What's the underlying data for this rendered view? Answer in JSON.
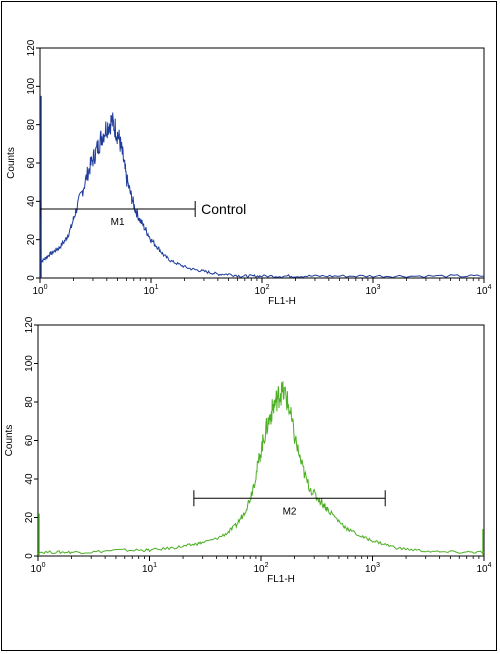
{
  "chart_data": [
    {
      "type": "line",
      "title": "",
      "xlabel": "FL1-H",
      "ylabel": "Counts",
      "x_scale": "log",
      "xlim": [
        1,
        10000
      ],
      "ylim": [
        0,
        120
      ],
      "y_ticks": [
        "0",
        "20",
        "40",
        "60",
        "80",
        "100",
        "120"
      ],
      "x_ticks": [
        {
          "base": "10",
          "exp": "0"
        },
        {
          "base": "10",
          "exp": "1"
        },
        {
          "base": "10",
          "exp": "2"
        },
        {
          "base": "10",
          "exp": "3"
        },
        {
          "base": "10",
          "exp": "4"
        }
      ],
      "color": "#1f3c9c",
      "series": [
        {
          "x": [
            1.0,
            1.1,
            1.2,
            1.35,
            1.5,
            1.7,
            1.9,
            2.1,
            2.4,
            2.7,
            3.0,
            3.3,
            3.6,
            4.0,
            4.4,
            4.8,
            5.2,
            5.6,
            6.0,
            6.6,
            7.2,
            8.0,
            9.0,
            10,
            11.5,
            13,
            15,
            18,
            22,
            27,
            33,
            40,
            50,
            65,
            80,
            100,
            150,
            200,
            300,
            500,
            1000,
            2000,
            5000,
            10000
          ],
          "y": [
            8,
            10,
            12,
            14,
            16,
            20,
            26,
            35,
            45,
            55,
            62,
            68,
            74,
            79,
            82,
            78,
            72,
            63,
            52,
            43,
            36,
            30,
            25,
            20,
            16,
            12,
            9,
            7,
            5,
            4,
            3,
            2,
            2,
            1,
            1,
            1,
            1,
            1,
            1,
            1,
            1,
            1,
            1,
            1
          ]
        }
      ],
      "marker": {
        "label": "M1",
        "x_start": 1.0,
        "x_end": 25,
        "y": 36
      },
      "annotation": "Control"
    },
    {
      "type": "line",
      "title": "",
      "xlabel": "FL1-H",
      "ylabel": "Counts",
      "x_scale": "log",
      "xlim": [
        1,
        10000
      ],
      "ylim": [
        0,
        120
      ],
      "y_ticks": [
        "0",
        "20",
        "40",
        "60",
        "80",
        "100",
        "120"
      ],
      "x_ticks": [
        {
          "base": "10",
          "exp": "0"
        },
        {
          "base": "10",
          "exp": "1"
        },
        {
          "base": "10",
          "exp": "2"
        },
        {
          "base": "10",
          "exp": "3"
        },
        {
          "base": "10",
          "exp": "4"
        }
      ],
      "color": "#4caf24",
      "series": [
        {
          "x": [
            1.0,
            1.5,
            2,
            3,
            5,
            8,
            10,
            15,
            20,
            25,
            30,
            40,
            50,
            60,
            70,
            80,
            90,
            100,
            110,
            120,
            130,
            140,
            150,
            165,
            180,
            200,
            230,
            260,
            300,
            350,
            400,
            500,
            600,
            800,
            1000,
            1300,
            1700,
            2500,
            4000,
            7000,
            10000
          ],
          "y": [
            2,
            2,
            2,
            2,
            3,
            3,
            3,
            4,
            5,
            6,
            7,
            9,
            12,
            16,
            22,
            30,
            42,
            55,
            65,
            72,
            78,
            82,
            85,
            84,
            76,
            62,
            48,
            38,
            32,
            28,
            24,
            18,
            14,
            10,
            8,
            6,
            4,
            3,
            2,
            2,
            2
          ]
        }
      ],
      "marker": {
        "label": "M2",
        "x_start": 25,
        "x_end": 1300,
        "y": 30
      }
    }
  ]
}
